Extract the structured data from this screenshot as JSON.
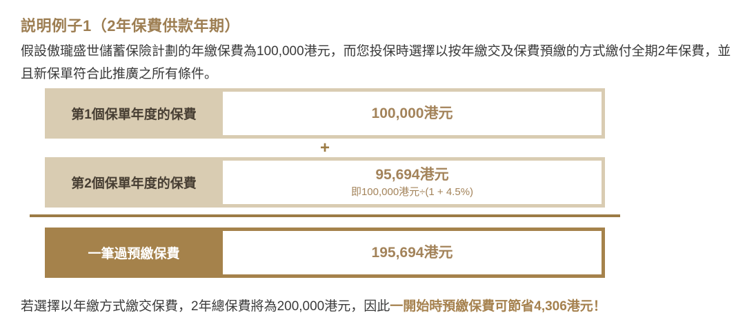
{
  "page": {
    "title": "説明例子1（2年保費供款年期）",
    "intro": "假設傲瓏盛世儲蓄保險計劃的年繳保費為100,000港元，而您投保時選擇以按年繳交及保費預繳的方式繳付全期2年保費，並且新保單符合此推廣之所有條件。",
    "footer_plain": "若選擇以年繳方式繳交保費，2年總保費將為200,000港元，因此",
    "footer_highlight": "一開始時預繳保費可節省4,306港元！"
  },
  "table": {
    "operator": "+",
    "rows": [
      {
        "label": "第1個保單年度的保費",
        "value": "100,000港元",
        "note": ""
      },
      {
        "label": "第2個保單年度的保費",
        "value": "95,694港元",
        "note": "即100,000港元÷(1 + 4.5%)"
      },
      {
        "label": "一筆過預繳保費",
        "value": "195,694港元",
        "note": ""
      }
    ]
  },
  "colors": {
    "title_gold": "#9d7e52",
    "value_gold": "#a3835a",
    "label_brown": "#473e33",
    "row_beige": "#d9ccb2",
    "row_dark_gold": "#a5824b",
    "divider_gold": "#9c7b45",
    "body_text": "#3a3a3a",
    "highlight_gold": "#a5814e"
  }
}
